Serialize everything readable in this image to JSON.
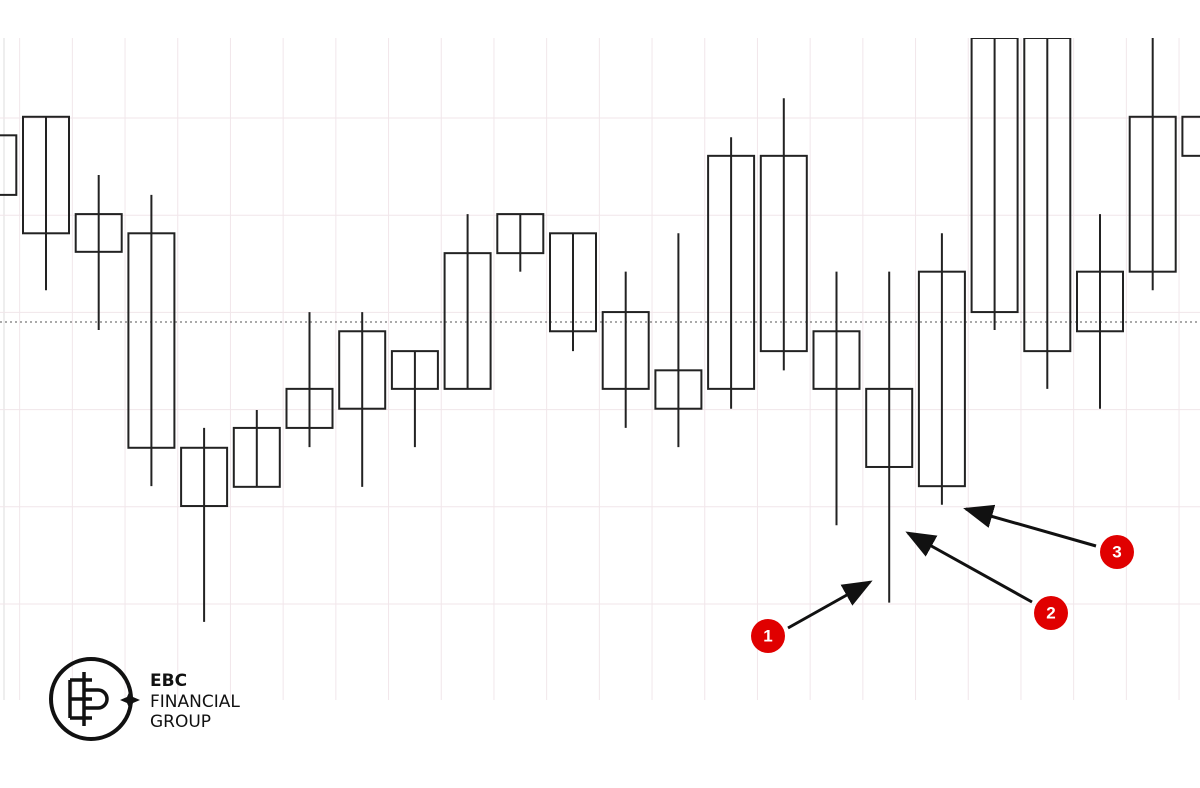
{
  "chart_data": {
    "type": "candlestick",
    "ylim": [
      0,
      100
    ],
    "grid": true,
    "box_color": "#222222",
    "wick_color": "#222222",
    "candles": [
      {
        "box_top": 85.3,
        "box_bottom": 76.3,
        "high": 85.3,
        "low": 76.3
      },
      {
        "box_top": 88.1,
        "box_bottom": 70.5,
        "high": 88.1,
        "low": 61.9
      },
      {
        "box_top": 73.4,
        "box_bottom": 67.7,
        "high": 79.3,
        "low": 55.9
      },
      {
        "box_top": 70.5,
        "box_bottom": 38.1,
        "high": 76.3,
        "low": 32.3
      },
      {
        "box_top": 38.1,
        "box_bottom": 29.3,
        "high": 41.1,
        "low": 11.8
      },
      {
        "box_top": 41.1,
        "box_bottom": 32.2,
        "high": 43.8,
        "low": 32.2
      },
      {
        "box_top": 47.0,
        "box_bottom": 41.1,
        "high": 58.6,
        "low": 38.2
      },
      {
        "box_top": 55.7,
        "box_bottom": 44.0,
        "high": 58.6,
        "low": 32.2
      },
      {
        "box_top": 52.7,
        "box_bottom": 47.0,
        "high": 52.7,
        "low": 38.2
      },
      {
        "box_top": 67.5,
        "box_bottom": 47.0,
        "high": 73.4,
        "low": 47.0
      },
      {
        "box_top": 73.4,
        "box_bottom": 67.5,
        "high": 73.4,
        "low": 64.7
      },
      {
        "box_top": 70.5,
        "box_bottom": 55.7,
        "high": 70.5,
        "low": 52.7
      },
      {
        "box_top": 58.6,
        "box_bottom": 47.0,
        "high": 64.7,
        "low": 41.1
      },
      {
        "box_top": 49.8,
        "box_bottom": 44.0,
        "high": 70.5,
        "low": 38.2
      },
      {
        "box_top": 82.2,
        "box_bottom": 47.0,
        "high": 85.0,
        "low": 44.0
      },
      {
        "box_top": 82.2,
        "box_bottom": 52.7,
        "high": 90.9,
        "low": 49.8
      },
      {
        "box_top": 55.7,
        "box_bottom": 47.0,
        "high": 64.7,
        "low": 26.4
      },
      {
        "box_top": 47.0,
        "box_bottom": 35.2,
        "high": 64.7,
        "low": 14.7
      },
      {
        "box_top": 64.7,
        "box_bottom": 32.3,
        "high": 70.5,
        "low": 29.5
      },
      {
        "box_top": 100,
        "box_bottom": 58.6,
        "high": 100,
        "low": 55.9
      },
      {
        "box_top": 100,
        "box_bottom": 52.7,
        "high": 100,
        "low": 47.0
      },
      {
        "box_top": 64.7,
        "box_bottom": 55.7,
        "high": 73.4,
        "low": 44.0
      },
      {
        "box_top": 88.1,
        "box_bottom": 64.7,
        "high": 100,
        "low": 61.9
      },
      {
        "box_top": 88.1,
        "box_bottom": 82.2,
        "high": 88.1,
        "low": 82.2
      }
    ],
    "annotations": [
      "1",
      "2",
      "3"
    ]
  },
  "logo": {
    "line1": "EBC",
    "line2": "FINANCIAL",
    "line3": "GROUP"
  }
}
